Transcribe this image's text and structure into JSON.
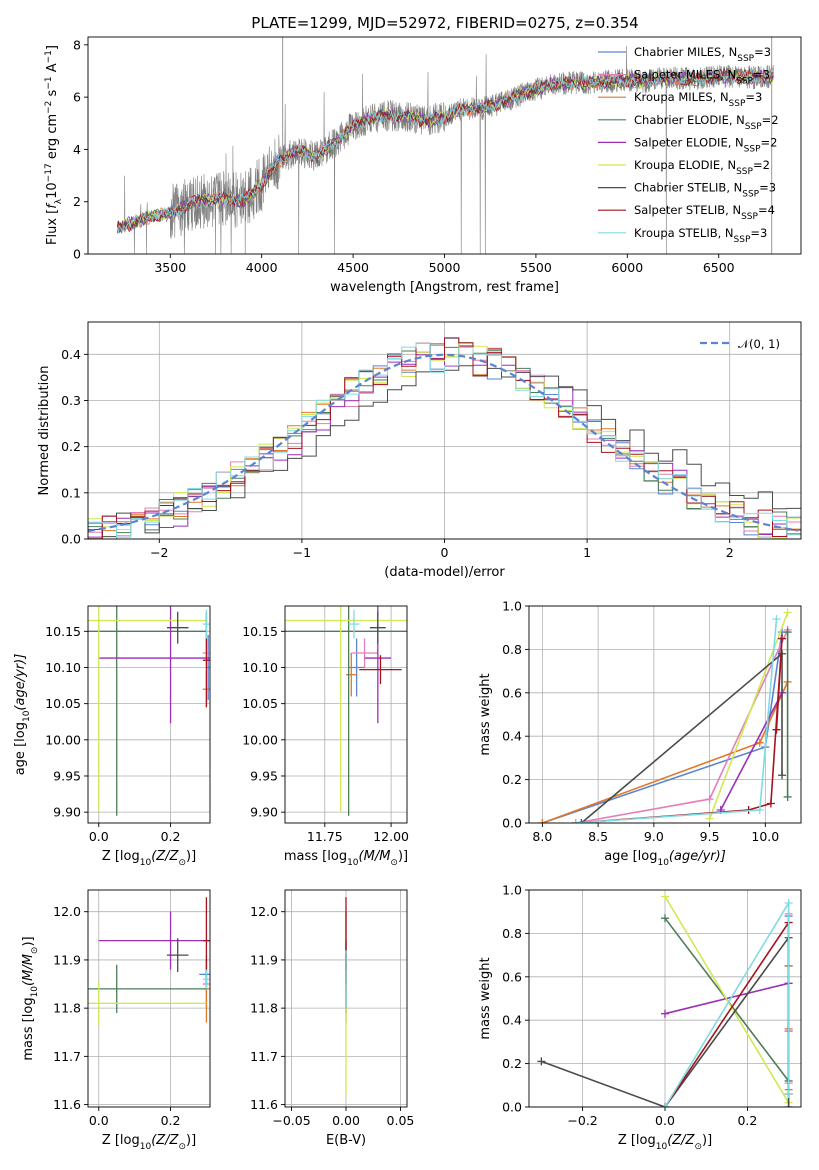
{
  "figure": {
    "title": "PLATE=1299, MJD=52972, FIBERID=0275, z=0.354"
  },
  "models": [
    {
      "name": "Chabrier MILES, N",
      "sub": "SSP",
      "suffix": "=3",
      "color": "#5b84d3"
    },
    {
      "name": "Salpeter MILES, N",
      "sub": "SSP",
      "suffix": "=3",
      "color": "#e47fb8"
    },
    {
      "name": "Kroupa MILES, N",
      "sub": "SSP",
      "suffix": "=3",
      "color": "#e0782a"
    },
    {
      "name": "Chabrier ELODIE, N",
      "sub": "SSP",
      "suffix": "=2",
      "color": "#4c7d56"
    },
    {
      "name": "Salpeter ELODIE, N",
      "sub": "SSP",
      "suffix": "=2",
      "color": "#9b2fb5"
    },
    {
      "name": "Kroupa ELODIE, N",
      "sub": "SSP",
      "suffix": "=2",
      "color": "#cfe955"
    },
    {
      "name": "Chabrier STELIB, N",
      "sub": "SSP",
      "suffix": "=3",
      "color": "#4a4a4a"
    },
    {
      "name": "Salpeter STELIB, N",
      "sub": "SSP",
      "suffix": "=4",
      "color": "#a5141e"
    },
    {
      "name": "Kroupa STELIB, N",
      "sub": "SSP",
      "suffix": "=3",
      "color": "#7fdbe2"
    }
  ],
  "chart_data": [
    {
      "id": "spectrum",
      "type": "line",
      "xlabel": "wavelength [Angstrom, rest frame]",
      "ylabel_parts": [
        "Flux [",
        "f",
        "λ",
        "10",
        "−17",
        " erg cm",
        "−2",
        " s",
        "−1",
        " A",
        "−1",
        "]"
      ],
      "xlim": [
        3050,
        6950
      ],
      "ylim": [
        0,
        8.3
      ],
      "xticks": [
        3500,
        4000,
        4500,
        5000,
        5500,
        6000,
        6500
      ],
      "yticks": [
        0,
        2,
        4,
        6,
        8
      ],
      "data_color": "#7f7f7f",
      "continuum": {
        "x": [
          3210,
          3300,
          3400,
          3500,
          3600,
          3700,
          3800,
          3900,
          4000,
          4100,
          4200,
          4300,
          4400,
          4500,
          4600,
          4700,
          4800,
          4900,
          5000,
          5100,
          5200,
          5300,
          5400,
          5500,
          5600,
          5700,
          5800,
          5900,
          6000,
          6100,
          6200,
          6300,
          6400,
          6500,
          6600,
          6700,
          6800
        ],
        "y": [
          1.0,
          1.2,
          1.45,
          1.55,
          1.9,
          2.05,
          2.15,
          2.0,
          2.7,
          3.6,
          3.95,
          3.75,
          4.25,
          4.9,
          5.2,
          5.3,
          5.25,
          5.1,
          5.25,
          5.55,
          5.55,
          5.75,
          6.05,
          6.3,
          6.5,
          6.55,
          6.55,
          6.6,
          6.65,
          6.6,
          6.75,
          6.7,
          6.7,
          6.8,
          6.8,
          6.75,
          6.8
        ]
      }
    },
    {
      "id": "residuals",
      "type": "histogram",
      "xlabel": "(data-model)/error",
      "ylabel": "Normed distribution",
      "xlim": [
        -2.5,
        2.5
      ],
      "ylim": [
        0,
        0.47
      ],
      "xticks": [
        -2,
        -1,
        0,
        1,
        2
      ],
      "yticks": [
        0.0,
        0.1,
        0.2,
        0.3,
        0.4
      ],
      "grid": true,
      "legend_position": "top-right",
      "reference_curve": {
        "label": "𝒩(0, 1)",
        "color": "#5b84d3",
        "mean": 0,
        "sigma": 1
      }
    },
    {
      "id": "age-vs-z",
      "type": "errorbar",
      "xlabel_parts": [
        "Z [log",
        "10",
        "(Z/Z",
        "⊙",
        ")]"
      ],
      "ylabel_parts": [
        "age  [log",
        "10",
        "(age/yr)]"
      ],
      "xlim": [
        -0.03,
        0.31
      ],
      "ylim": [
        9.885,
        10.185
      ],
      "xticks": [
        0.0,
        0.2
      ],
      "yticks": [
        9.9,
        9.95,
        10.0,
        10.05,
        10.1,
        10.15
      ],
      "grid": true,
      "points": [
        {
          "x": 0.305,
          "xerr": 0.005,
          "y": 10.1,
          "yerr": 0.045
        },
        {
          "x": 0.3,
          "xerr": 0.01,
          "y": 10.12,
          "yerr": 0.02
        },
        {
          "x": 0.3,
          "xerr": 0.01,
          "y": 10.07,
          "yerr": 0.025
        },
        {
          "x": 0.05,
          "xerr": 0.25,
          "y": 10.15,
          "yerr": 0.255
        },
        {
          "x": 0.2,
          "xerr": 0.2,
          "y": 10.113,
          "yerr": 0.09
        },
        {
          "x": 0.0,
          "xerr": 0.3,
          "y": 10.165,
          "yerr": 0.265
        },
        {
          "x": 0.22,
          "xerr": 0.03,
          "y": 10.155,
          "yerr": 0.022
        },
        {
          "x": 0.3,
          "xerr": 0.01,
          "y": 10.11,
          "yerr": 0.065
        },
        {
          "x": 0.3,
          "xerr": 0.01,
          "y": 10.16,
          "yerr": 0.02
        }
      ]
    },
    {
      "id": "age-vs-mass",
      "type": "errorbar",
      "xlabel_parts": [
        "mass [log",
        "10",
        "(M/M",
        "⊙",
        ")]"
      ],
      "ylabel_parts": [],
      "xlim": [
        11.6,
        12.06
      ],
      "ylim": [
        9.885,
        10.185
      ],
      "xticks": [
        11.75,
        12.0
      ],
      "yticks": [
        9.9,
        9.95,
        10.0,
        10.05,
        10.1,
        10.15
      ],
      "grid": true,
      "points": [
        {
          "x": 11.87,
          "xerr": 0.03,
          "y": 10.1,
          "yerr": 0.04
        },
        {
          "x": 11.9,
          "xerr": 0.05,
          "y": 10.12,
          "yerr": 0.02
        },
        {
          "x": 11.85,
          "xerr": 0.02,
          "y": 10.09,
          "yerr": 0.03
        },
        {
          "x": 11.84,
          "xerr": 0.24,
          "y": 10.15,
          "yerr": 0.255
        },
        {
          "x": 11.95,
          "xerr": 0.05,
          "y": 10.113,
          "yerr": 0.09
        },
        {
          "x": 11.81,
          "xerr": 0.25,
          "y": 10.165,
          "yerr": 0.265
        },
        {
          "x": 11.95,
          "xerr": 0.03,
          "y": 10.155,
          "yerr": 0.022
        },
        {
          "x": 11.96,
          "xerr": 0.08,
          "y": 10.097,
          "yerr": 0.02
        },
        {
          "x": 11.86,
          "xerr": 0.02,
          "y": 10.16,
          "yerr": 0.02
        }
      ]
    },
    {
      "id": "mass-weight-vs-age",
      "type": "line",
      "xlabel_parts": [
        "age  [log",
        "10",
        "(age/yr)]"
      ],
      "ylabel": "mass weight",
      "xlim": [
        7.88,
        10.32
      ],
      "ylim": [
        0,
        1.0
      ],
      "xticks": [
        8.0,
        8.5,
        9.0,
        9.5,
        10.0
      ],
      "yticks": [
        0.0,
        0.2,
        0.4,
        0.6,
        0.8,
        1.0
      ],
      "grid": true,
      "series": [
        {
          "x": [
            8.0,
            10.0,
            10.15
          ],
          "y": [
            0.0,
            0.35,
            0.88
          ]
        },
        {
          "x": [
            8.3,
            9.5,
            10.2
          ],
          "y": [
            0.0,
            0.11,
            0.89
          ]
        },
        {
          "x": [
            8.0,
            9.95,
            10.2
          ],
          "y": [
            0.0,
            0.37,
            0.65
          ]
        },
        {
          "x": [
            10.2,
            10.2
          ],
          "y": [
            0.12,
            0.88
          ]
        },
        {
          "x": [
            9.6,
            10.15
          ],
          "y": [
            0.06,
            0.6
          ]
        },
        {
          "x": [
            9.5,
            10.2
          ],
          "y": [
            0.02,
            0.97
          ]
        },
        {
          "x": [
            8.35,
            10.15,
            10.15
          ],
          "y": [
            0.0,
            0.78,
            0.22
          ]
        },
        {
          "x": [
            8.3,
            9.85,
            10.05,
            10.15,
            10.1
          ],
          "y": [
            0.0,
            0.06,
            0.09,
            0.85,
            0.43
          ]
        },
        {
          "x": [
            8.3,
            9.95,
            10.1
          ],
          "y": [
            0.0,
            0.06,
            0.94
          ]
        }
      ]
    },
    {
      "id": "mass-vs-z",
      "type": "errorbar",
      "xlabel_parts": [
        "Z [log",
        "10",
        "(Z/Z",
        "⊙",
        ")]"
      ],
      "ylabel_parts": [
        "mass [log",
        "10",
        "(M/M",
        "⊙",
        ")]"
      ],
      "xlim": [
        -0.03,
        0.31
      ],
      "ylim": [
        11.595,
        12.045
      ],
      "xticks": [
        0.0,
        0.2
      ],
      "yticks": [
        11.6,
        11.7,
        11.8,
        11.9,
        12.0
      ],
      "grid": true,
      "points": [
        {
          "x": 0.3,
          "xerr": 0.02,
          "y": 11.87,
          "yerr": 0.03
        },
        {
          "x": 0.3,
          "xerr": 0.01,
          "y": 11.85,
          "yerr": 0.05
        },
        {
          "x": 0.3,
          "xerr": 0.01,
          "y": 11.84,
          "yerr": 0.07
        },
        {
          "x": 0.05,
          "xerr": 0.25,
          "y": 11.84,
          "yerr": 0.05
        },
        {
          "x": 0.2,
          "xerr": 0.2,
          "y": 11.94,
          "yerr": 0.06
        },
        {
          "x": 0.0,
          "xerr": 0.3,
          "y": 11.81,
          "yerr": 0.045
        },
        {
          "x": 0.22,
          "xerr": 0.03,
          "y": 11.91,
          "yerr": 0.035
        },
        {
          "x": 0.3,
          "xerr": 0.01,
          "y": 11.94,
          "yerr": 0.09
        },
        {
          "x": 0.3,
          "xerr": 0.01,
          "y": 11.86,
          "yerr": 0.02
        }
      ]
    },
    {
      "id": "mass-vs-ebv",
      "type": "errorbar",
      "xlabel": "E(B-V)",
      "xlim": [
        -0.056,
        0.056
      ],
      "ylim": [
        11.595,
        12.045
      ],
      "xticks": [
        -0.05,
        0.0,
        0.05
      ],
      "yticks": [
        11.6,
        11.7,
        11.8,
        11.9,
        12.0
      ],
      "grid": true,
      "points": [
        {
          "x": 0,
          "xerr": 0,
          "y": 11.87,
          "yerr": 0.04
        },
        {
          "x": 0,
          "xerr": 0,
          "y": 11.85,
          "yerr": 0.05
        },
        {
          "x": 0,
          "xerr": 0,
          "y": 11.84,
          "yerr": 0.07
        },
        {
          "x": 0,
          "xerr": 0,
          "y": 11.84,
          "yerr": 0.05
        },
        {
          "x": 0,
          "xerr": 0,
          "y": 11.94,
          "yerr": 0.06
        },
        {
          "x": 0,
          "xerr": 0,
          "y": 11.81,
          "yerr": 0.19
        },
        {
          "x": 0,
          "xerr": 0,
          "y": 11.91,
          "yerr": 0.03
        },
        {
          "x": 0,
          "xerr": 0,
          "y": 11.94,
          "yerr": 0.09
        },
        {
          "x": 0,
          "xerr": 0,
          "y": 11.86,
          "yerr": 0.06
        }
      ]
    },
    {
      "id": "mass-weight-vs-z",
      "type": "line",
      "xlabel_parts": [
        "Z [log",
        "10",
        "(Z/Z",
        "⊙",
        ")]"
      ],
      "ylabel": "mass weight",
      "xlim": [
        -0.33,
        0.33
      ],
      "ylim": [
        0,
        1.0
      ],
      "xticks": [
        -0.2,
        0.0,
        0.2
      ],
      "yticks": [
        0.0,
        0.2,
        0.4,
        0.6,
        0.8,
        1.0
      ],
      "grid": true,
      "series": [
        {
          "x": [
            0.3,
            0.3,
            0.3
          ],
          "y": [
            0.35,
            0.65,
            0.88
          ]
        },
        {
          "x": [
            0.3,
            0.3,
            0.3
          ],
          "y": [
            0.11,
            0.35,
            0.89
          ]
        },
        {
          "x": [
            0.3,
            0.3,
            0.3
          ],
          "y": [
            0.08,
            0.36,
            0.65
          ]
        },
        {
          "x": [
            0.0,
            0.3
          ],
          "y": [
            0.87,
            0.12
          ]
        },
        {
          "x": [
            0.0,
            0.3
          ],
          "y": [
            0.43,
            0.57
          ]
        },
        {
          "x": [
            0.0,
            0.3
          ],
          "y": [
            0.97,
            0.02
          ]
        },
        {
          "x": [
            -0.3,
            0.0,
            0.3,
            0.3
          ],
          "y": [
            0.21,
            0.0,
            0.78,
            0.0
          ]
        },
        {
          "x": [
            0.0,
            0.3,
            0.3
          ],
          "y": [
            0.0,
            0.85,
            0.06
          ]
        },
        {
          "x": [
            0.0,
            0.3,
            0.3
          ],
          "y": [
            0.0,
            0.94,
            0.06
          ]
        }
      ]
    }
  ]
}
